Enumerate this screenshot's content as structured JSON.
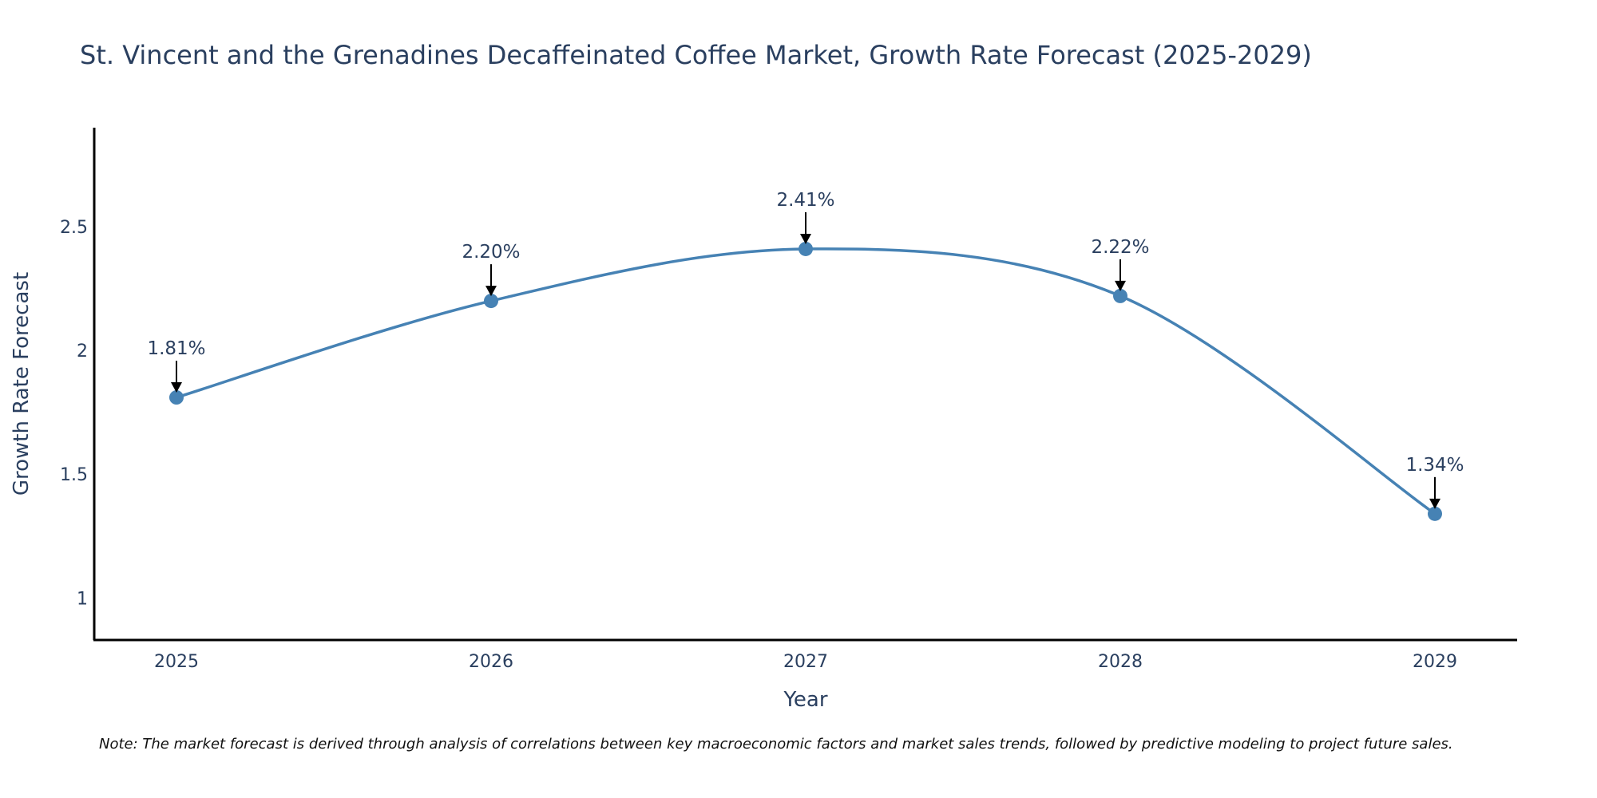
{
  "chart_data": {
    "type": "line",
    "title": "St. Vincent and the Grenadines Decaffeinated Coffee Market, Growth Rate Forecast (2025-2029)",
    "xlabel": "Year",
    "ylabel": "Growth Rate Forecast",
    "x": [
      "2025",
      "2026",
      "2027",
      "2028",
      "2029"
    ],
    "series": [
      {
        "name": "Growth Rate Forecast",
        "values": [
          1.81,
          2.2,
          2.41,
          2.22,
          1.34
        ]
      }
    ],
    "annotations": [
      "1.81%",
      "2.20%",
      "2.41%",
      "2.22%",
      "1.34%"
    ],
    "y_ticks": [
      1,
      1.5,
      2,
      2.5
    ],
    "y_tick_labels": [
      "1",
      "1.5",
      "2",
      "2.5"
    ],
    "ylim": [
      0.83,
      2.9
    ],
    "grid": false,
    "line_color": "#4682b4",
    "note": "Note: The market forecast is derived through analysis of correlations between key macroeconomic factors and market sales trends, followed by predictive modeling to project future sales."
  }
}
